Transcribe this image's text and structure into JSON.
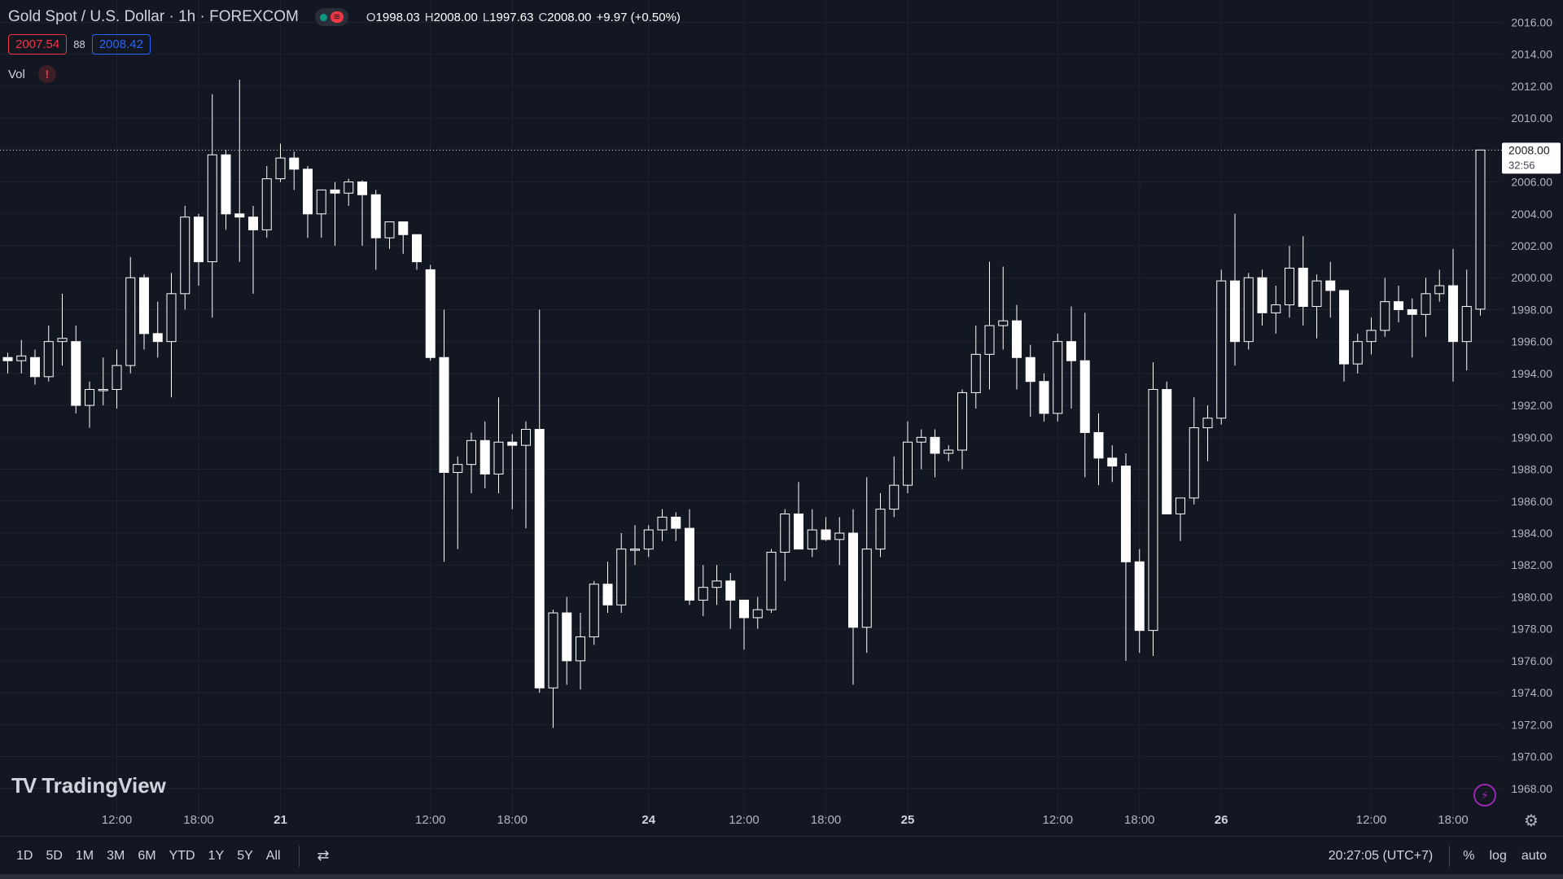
{
  "header": {
    "title": "Gold Spot / U.S. Dollar · 1h · FOREXCOM",
    "ohlc": {
      "o_label": "O",
      "o_value": "1998.03",
      "h_label": "H",
      "h_value": "2008.00",
      "l_label": "L",
      "l_value": "1997.63",
      "c_label": "C",
      "c_value": "2008.00",
      "change": "+9.97 (+0.50%)"
    },
    "bid": "2007.54",
    "spread": "88",
    "ask": "2008.42",
    "volume_label": "Vol",
    "warning_icon": "!"
  },
  "colors": {
    "background": "#131722",
    "grid": "#1f2330",
    "candle": "#ffffff",
    "bid": "#f23645",
    "ask": "#2962ff",
    "axis_text": "#b2b5be",
    "price_label_bg": "#ffffff",
    "price_label_text": "#131722"
  },
  "current_price": {
    "price": 2008.0,
    "price_text": "2008.00",
    "countdown": "32:56"
  },
  "logo": {
    "mark": "TV",
    "text": "TradingView"
  },
  "icons": {
    "lightning": "⚡",
    "gear": "⚙",
    "date_range": "⇄"
  },
  "bottom_bar": {
    "ranges": [
      "1D",
      "5D",
      "1M",
      "3M",
      "6M",
      "YTD",
      "1Y",
      "5Y",
      "All"
    ],
    "clock": "20:27:05 (UTC+7)",
    "percent": "%",
    "log": "log",
    "auto": "auto"
  },
  "chart_data": {
    "type": "candlestick",
    "ylim": [
      1966.0,
      2017.4
    ],
    "y_ticks": [
      "2016.00",
      "2014.00",
      "2012.00",
      "2010.00",
      "2008.00",
      "2006.00",
      "2004.00",
      "2002.00",
      "2000.00",
      "1998.00",
      "1996.00",
      "1994.00",
      "1992.00",
      "1990.00",
      "1988.00",
      "1986.00",
      "1984.00",
      "1982.00",
      "1980.00",
      "1978.00",
      "1976.00",
      "1974.00",
      "1972.00",
      "1970.00",
      "1968.00"
    ],
    "x_ticks": [
      {
        "label": "12:00",
        "index": 8
      },
      {
        "label": "18:00",
        "index": 14
      },
      {
        "label": "21",
        "index": 20
      },
      {
        "label": "12:00",
        "index": 31
      },
      {
        "label": "18:00",
        "index": 37
      },
      {
        "label": "24",
        "index": 47
      },
      {
        "label": "12:00",
        "index": 54
      },
      {
        "label": "18:00",
        "index": 60
      },
      {
        "label": "25",
        "index": 66
      },
      {
        "label": "12:00",
        "index": 77
      },
      {
        "label": "18:00",
        "index": 83
      },
      {
        "label": "26",
        "index": 89
      },
      {
        "label": "12:00",
        "index": 100
      },
      {
        "label": "18:00",
        "index": 106
      }
    ],
    "candles": [
      [
        1995.0,
        1995.3,
        1994.0,
        1994.8
      ],
      [
        1994.8,
        1996.1,
        1994.0,
        1995.1
      ],
      [
        1995.0,
        1995.5,
        1993.3,
        1993.8
      ],
      [
        1993.8,
        1997.0,
        1993.5,
        1996.0
      ],
      [
        1996.0,
        1999.0,
        1994.5,
        1996.2
      ],
      [
        1996.0,
        1997.0,
        1991.5,
        1992.0
      ],
      [
        1992.0,
        1993.5,
        1990.6,
        1993.0
      ],
      [
        1993.0,
        1995.0,
        1992.0,
        1993.0
      ],
      [
        1993.0,
        1995.5,
        1991.8,
        1994.5
      ],
      [
        1994.5,
        2001.3,
        1994.0,
        2000.0
      ],
      [
        2000.0,
        2000.2,
        1995.5,
        1996.5
      ],
      [
        1996.5,
        1998.5,
        1995.0,
        1996.0
      ],
      [
        1996.0,
        2000.3,
        1992.5,
        1999.0
      ],
      [
        1999.0,
        2004.5,
        1998.0,
        2003.8
      ],
      [
        2003.8,
        2004.0,
        1999.5,
        2001.0
      ],
      [
        2001.0,
        2011.5,
        1997.5,
        2007.7
      ],
      [
        2007.7,
        2008.0,
        2003.0,
        2004.0
      ],
      [
        2004.0,
        2012.4,
        2001.0,
        2003.8
      ],
      [
        2003.8,
        2004.5,
        1999.0,
        2003.0
      ],
      [
        2003.0,
        2007.0,
        2002.5,
        2006.2
      ],
      [
        2006.2,
        2008.4,
        2006.0,
        2007.5
      ],
      [
        2007.5,
        2007.9,
        2005.5,
        2006.8
      ],
      [
        2006.8,
        2007.0,
        2002.5,
        2004.0
      ],
      [
        2004.0,
        2005.5,
        2002.5,
        2005.5
      ],
      [
        2005.5,
        2006.0,
        2002.0,
        2005.3
      ],
      [
        2005.3,
        2006.2,
        2004.5,
        2006.0
      ],
      [
        2006.0,
        2006.1,
        2002.0,
        2005.2
      ],
      [
        2005.2,
        2005.5,
        2000.5,
        2002.5
      ],
      [
        2002.5,
        2003.5,
        2001.8,
        2003.5
      ],
      [
        2003.5,
        2003.5,
        2001.5,
        2002.7
      ],
      [
        2002.7,
        2002.7,
        2000.5,
        2001.0
      ],
      [
        2000.5,
        2000.8,
        1994.8,
        1995.0
      ],
      [
        1995.0,
        1998.0,
        1982.2,
        1987.8
      ],
      [
        1987.8,
        1988.8,
        1983.0,
        1988.3
      ],
      [
        1988.3,
        1990.3,
        1986.5,
        1989.8
      ],
      [
        1989.8,
        1991.0,
        1986.8,
        1987.7
      ],
      [
        1987.7,
        1992.5,
        1986.5,
        1989.7
      ],
      [
        1989.7,
        1990.2,
        1985.5,
        1989.5
      ],
      [
        1989.5,
        1991.0,
        1984.3,
        1990.5
      ],
      [
        1990.5,
        1998.0,
        1974.0,
        1974.3
      ],
      [
        1974.3,
        1979.2,
        1971.8,
        1979.0
      ],
      [
        1979.0,
        1980.0,
        1974.5,
        1976.0
      ],
      [
        1976.0,
        1979.0,
        1974.2,
        1977.5
      ],
      [
        1977.5,
        1981.0,
        1977.0,
        1980.8
      ],
      [
        1980.8,
        1982.2,
        1979.0,
        1979.5
      ],
      [
        1979.5,
        1984.0,
        1979.0,
        1983.0
      ],
      [
        1983.0,
        1984.5,
        1982.0,
        1983.0
      ],
      [
        1983.0,
        1984.5,
        1982.5,
        1984.2
      ],
      [
        1984.2,
        1985.5,
        1983.5,
        1985.0
      ],
      [
        1985.0,
        1985.3,
        1983.5,
        1984.3
      ],
      [
        1984.3,
        1985.5,
        1979.5,
        1979.8
      ],
      [
        1979.8,
        1982.0,
        1978.8,
        1980.6
      ],
      [
        1980.6,
        1982.0,
        1979.5,
        1981.0
      ],
      [
        1981.0,
        1981.5,
        1978.0,
        1979.8
      ],
      [
        1979.8,
        1979.8,
        1976.7,
        1978.7
      ],
      [
        1978.7,
        1980.0,
        1978.0,
        1979.2
      ],
      [
        1979.2,
        1983.0,
        1979.0,
        1982.8
      ],
      [
        1982.8,
        1985.5,
        1981.0,
        1985.2
      ],
      [
        1985.2,
        1987.2,
        1983.0,
        1983.0
      ],
      [
        1983.0,
        1985.5,
        1982.5,
        1984.2
      ],
      [
        1984.2,
        1985.0,
        1983.5,
        1983.6
      ],
      [
        1983.6,
        1985.0,
        1982.0,
        1984.0
      ],
      [
        1984.0,
        1985.5,
        1974.5,
        1978.1
      ],
      [
        1978.1,
        1987.5,
        1976.5,
        1983.0
      ],
      [
        1983.0,
        1986.5,
        1982.5,
        1985.5
      ],
      [
        1985.5,
        1988.8,
        1985.0,
        1987.0
      ],
      [
        1987.0,
        1991.0,
        1986.5,
        1989.7
      ],
      [
        1989.7,
        1990.5,
        1988.0,
        1990.0
      ],
      [
        1990.0,
        1990.5,
        1987.5,
        1989.0
      ],
      [
        1989.0,
        1989.5,
        1988.5,
        1989.2
      ],
      [
        1989.2,
        1993.0,
        1988.0,
        1992.8
      ],
      [
        1992.8,
        1997.0,
        1991.8,
        1995.2
      ],
      [
        1995.2,
        2001.0,
        1993.0,
        1997.0
      ],
      [
        1997.0,
        2000.7,
        1995.5,
        1997.3
      ],
      [
        1997.3,
        1998.3,
        1993.0,
        1995.0
      ],
      [
        1995.0,
        1995.8,
        1991.3,
        1993.5
      ],
      [
        1993.5,
        1994.0,
        1991.0,
        1991.5
      ],
      [
        1991.5,
        1996.5,
        1991.0,
        1996.0
      ],
      [
        1996.0,
        1998.2,
        1991.8,
        1994.8
      ],
      [
        1994.8,
        1997.8,
        1987.5,
        1990.3
      ],
      [
        1990.3,
        1991.5,
        1987.0,
        1988.7
      ],
      [
        1988.7,
        1989.5,
        1987.2,
        1988.2
      ],
      [
        1988.2,
        1989.0,
        1976.0,
        1982.2
      ],
      [
        1982.2,
        1983.0,
        1976.5,
        1977.9
      ],
      [
        1977.9,
        1994.7,
        1976.3,
        1993.0
      ],
      [
        1993.0,
        1993.5,
        1985.5,
        1985.2
      ],
      [
        1985.2,
        1986.0,
        1983.5,
        1986.2
      ],
      [
        1986.2,
        1992.5,
        1985.8,
        1990.6
      ],
      [
        1990.6,
        1992.0,
        1988.5,
        1991.2
      ],
      [
        1991.2,
        2000.5,
        1990.8,
        1999.8
      ],
      [
        1999.8,
        2004.0,
        1994.5,
        1996.0
      ],
      [
        1996.0,
        2000.3,
        1995.5,
        2000.0
      ],
      [
        2000.0,
        2000.5,
        1997.0,
        1997.8
      ],
      [
        1997.8,
        1999.5,
        1996.5,
        1998.3
      ],
      [
        1998.3,
        2002.0,
        1997.5,
        2000.6
      ],
      [
        2000.6,
        2002.6,
        1997.0,
        1998.2
      ],
      [
        1998.2,
        2000.2,
        1996.2,
        1999.8
      ],
      [
        1999.8,
        2001.0,
        1997.5,
        1999.2
      ],
      [
        1999.2,
        1999.2,
        1993.5,
        1994.6
      ],
      [
        1994.6,
        1996.5,
        1994.0,
        1996.0
      ],
      [
        1996.0,
        1997.5,
        1995.2,
        1996.7
      ],
      [
        1996.7,
        2000.0,
        1996.3,
        1998.5
      ],
      [
        1998.5,
        1999.5,
        1997.2,
        1998.0
      ],
      [
        1998.0,
        1998.7,
        1995.0,
        1997.7
      ],
      [
        1997.7,
        2000.0,
        1996.3,
        1999.0
      ],
      [
        1999.0,
        2000.5,
        1998.5,
        1999.5
      ],
      [
        1999.5,
        2001.8,
        1993.5,
        1996.0
      ],
      [
        1996.0,
        2000.5,
        1994.2,
        1998.2
      ],
      [
        1998.03,
        2008.0,
        1997.63,
        2008.0
      ]
    ]
  }
}
